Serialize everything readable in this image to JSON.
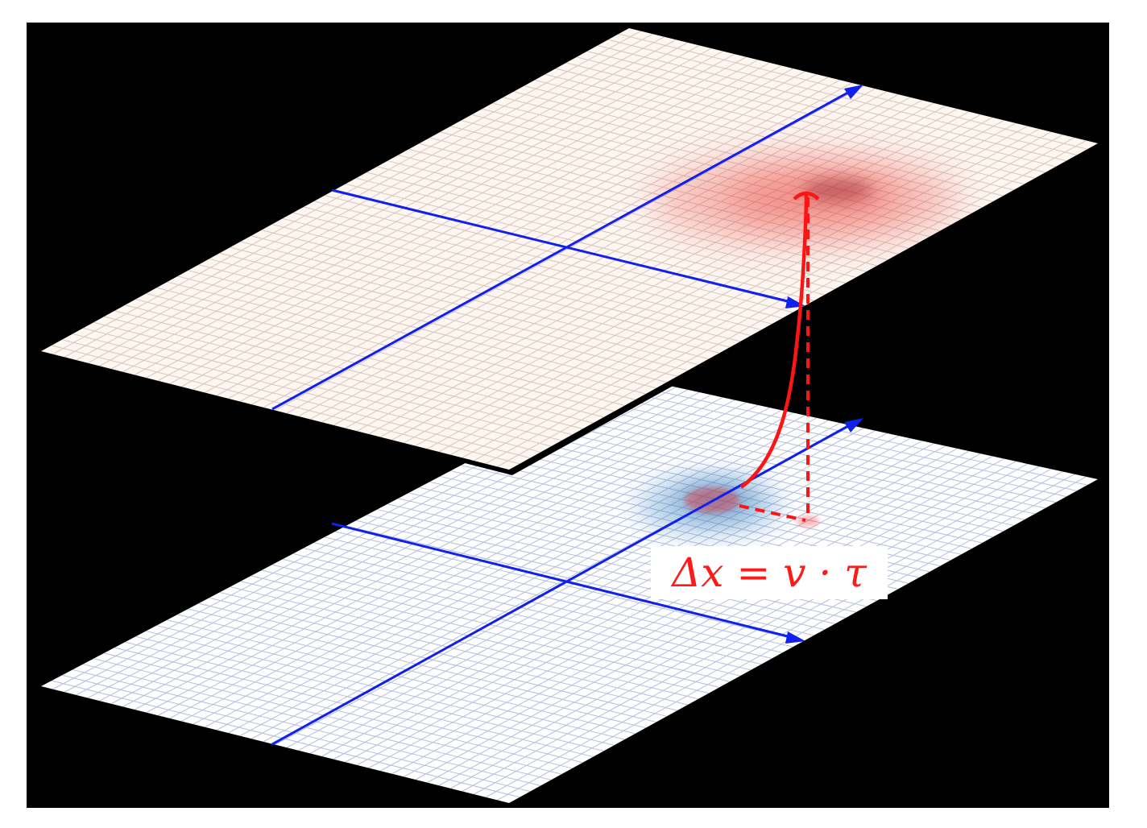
{
  "figure": {
    "equation": "Δx = v · τ",
    "colors": {
      "background": "#000000",
      "upper_plane": "#fdf6f1",
      "upper_grid": "#d9c4bd",
      "lower_plane": "#ffffff",
      "lower_grid": "#b5bedd",
      "axes": "#1020ee",
      "trajectory": "#ff1414",
      "upper_blob": "#e8352d",
      "lower_blob": "#3f86c4"
    }
  }
}
